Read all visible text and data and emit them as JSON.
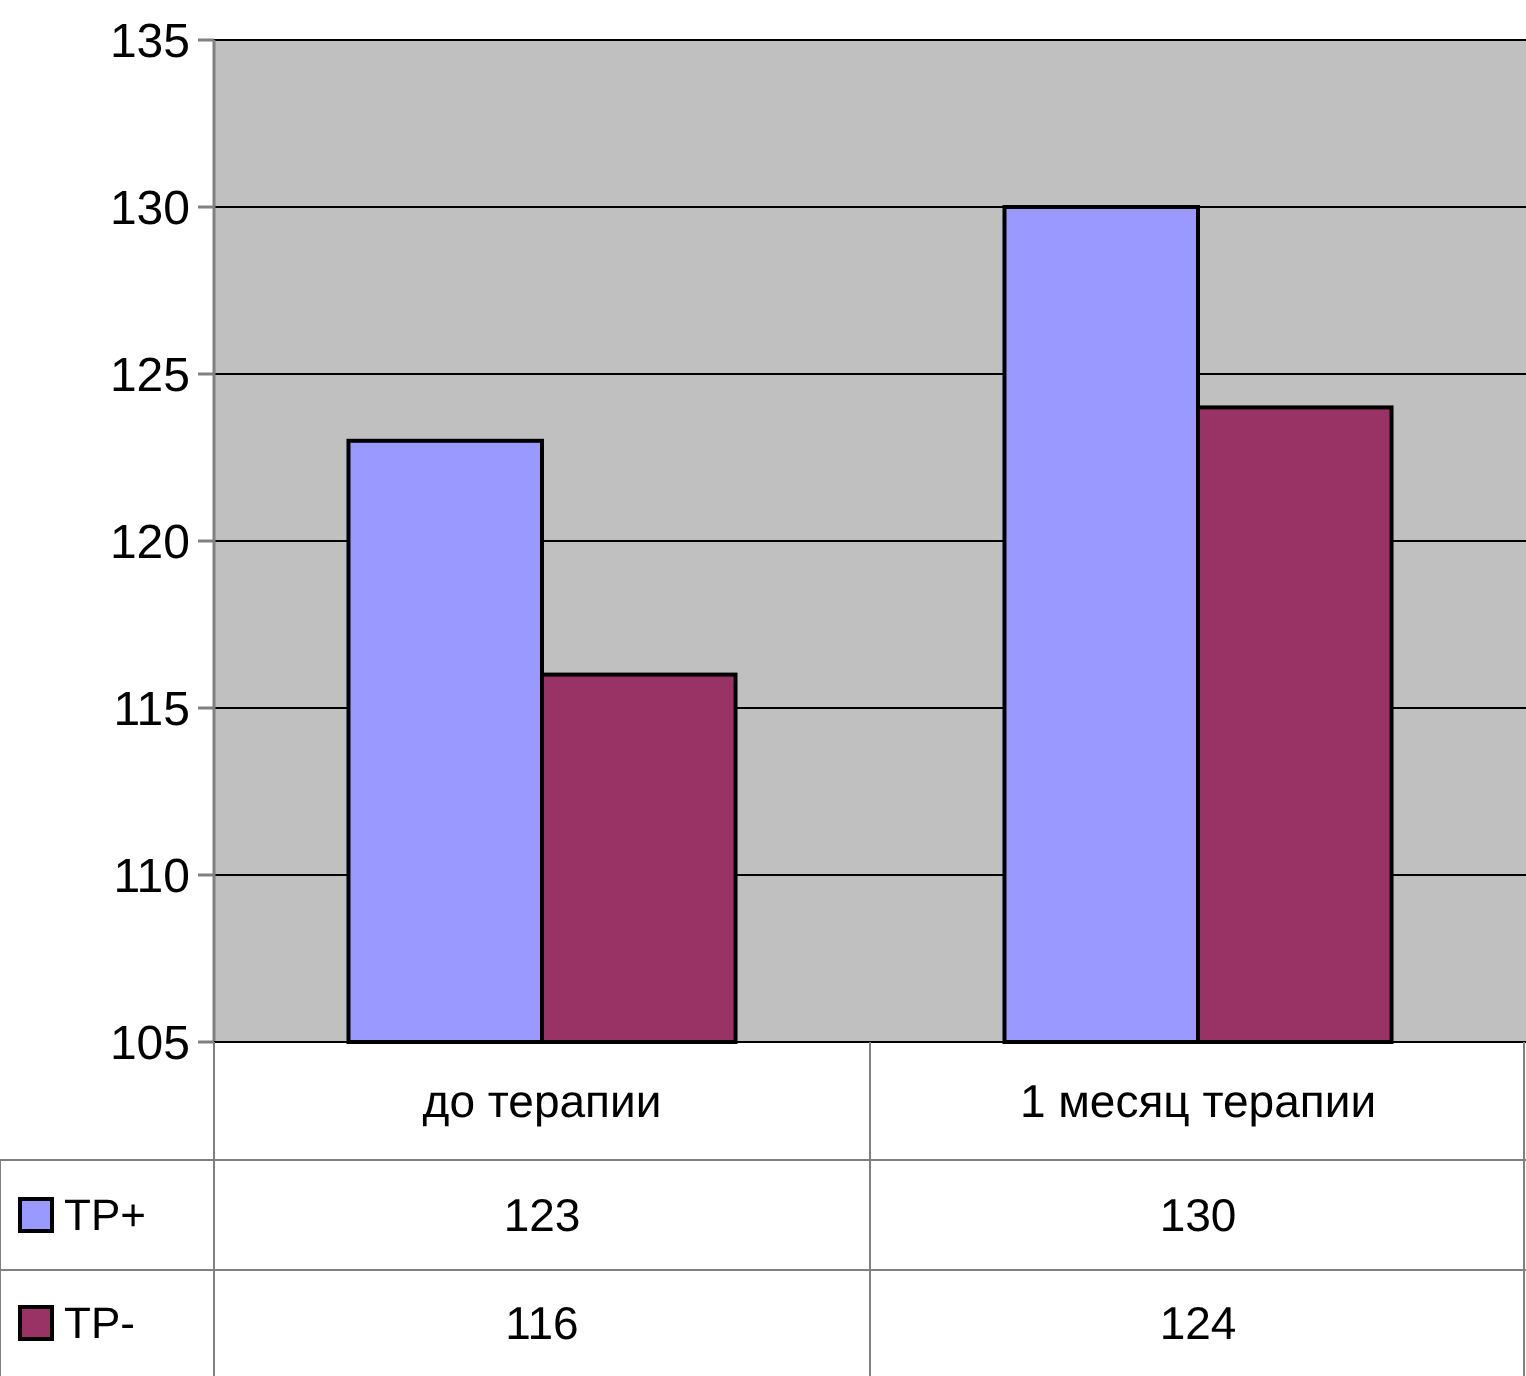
{
  "chart_data": {
    "type": "bar",
    "categories": [
      "до терапии",
      "1 месяц терапии"
    ],
    "series": [
      {
        "name": "TP+",
        "color": "#9999ff",
        "values": [
          123,
          130
        ]
      },
      {
        "name": "TP-",
        "color": "#993366",
        "values": [
          116,
          124
        ]
      }
    ],
    "ylim": [
      105,
      135
    ],
    "yticks": [
      105,
      110,
      115,
      120,
      125,
      130,
      135
    ],
    "grid": "y",
    "data_labels": true,
    "legend": "bottom"
  }
}
